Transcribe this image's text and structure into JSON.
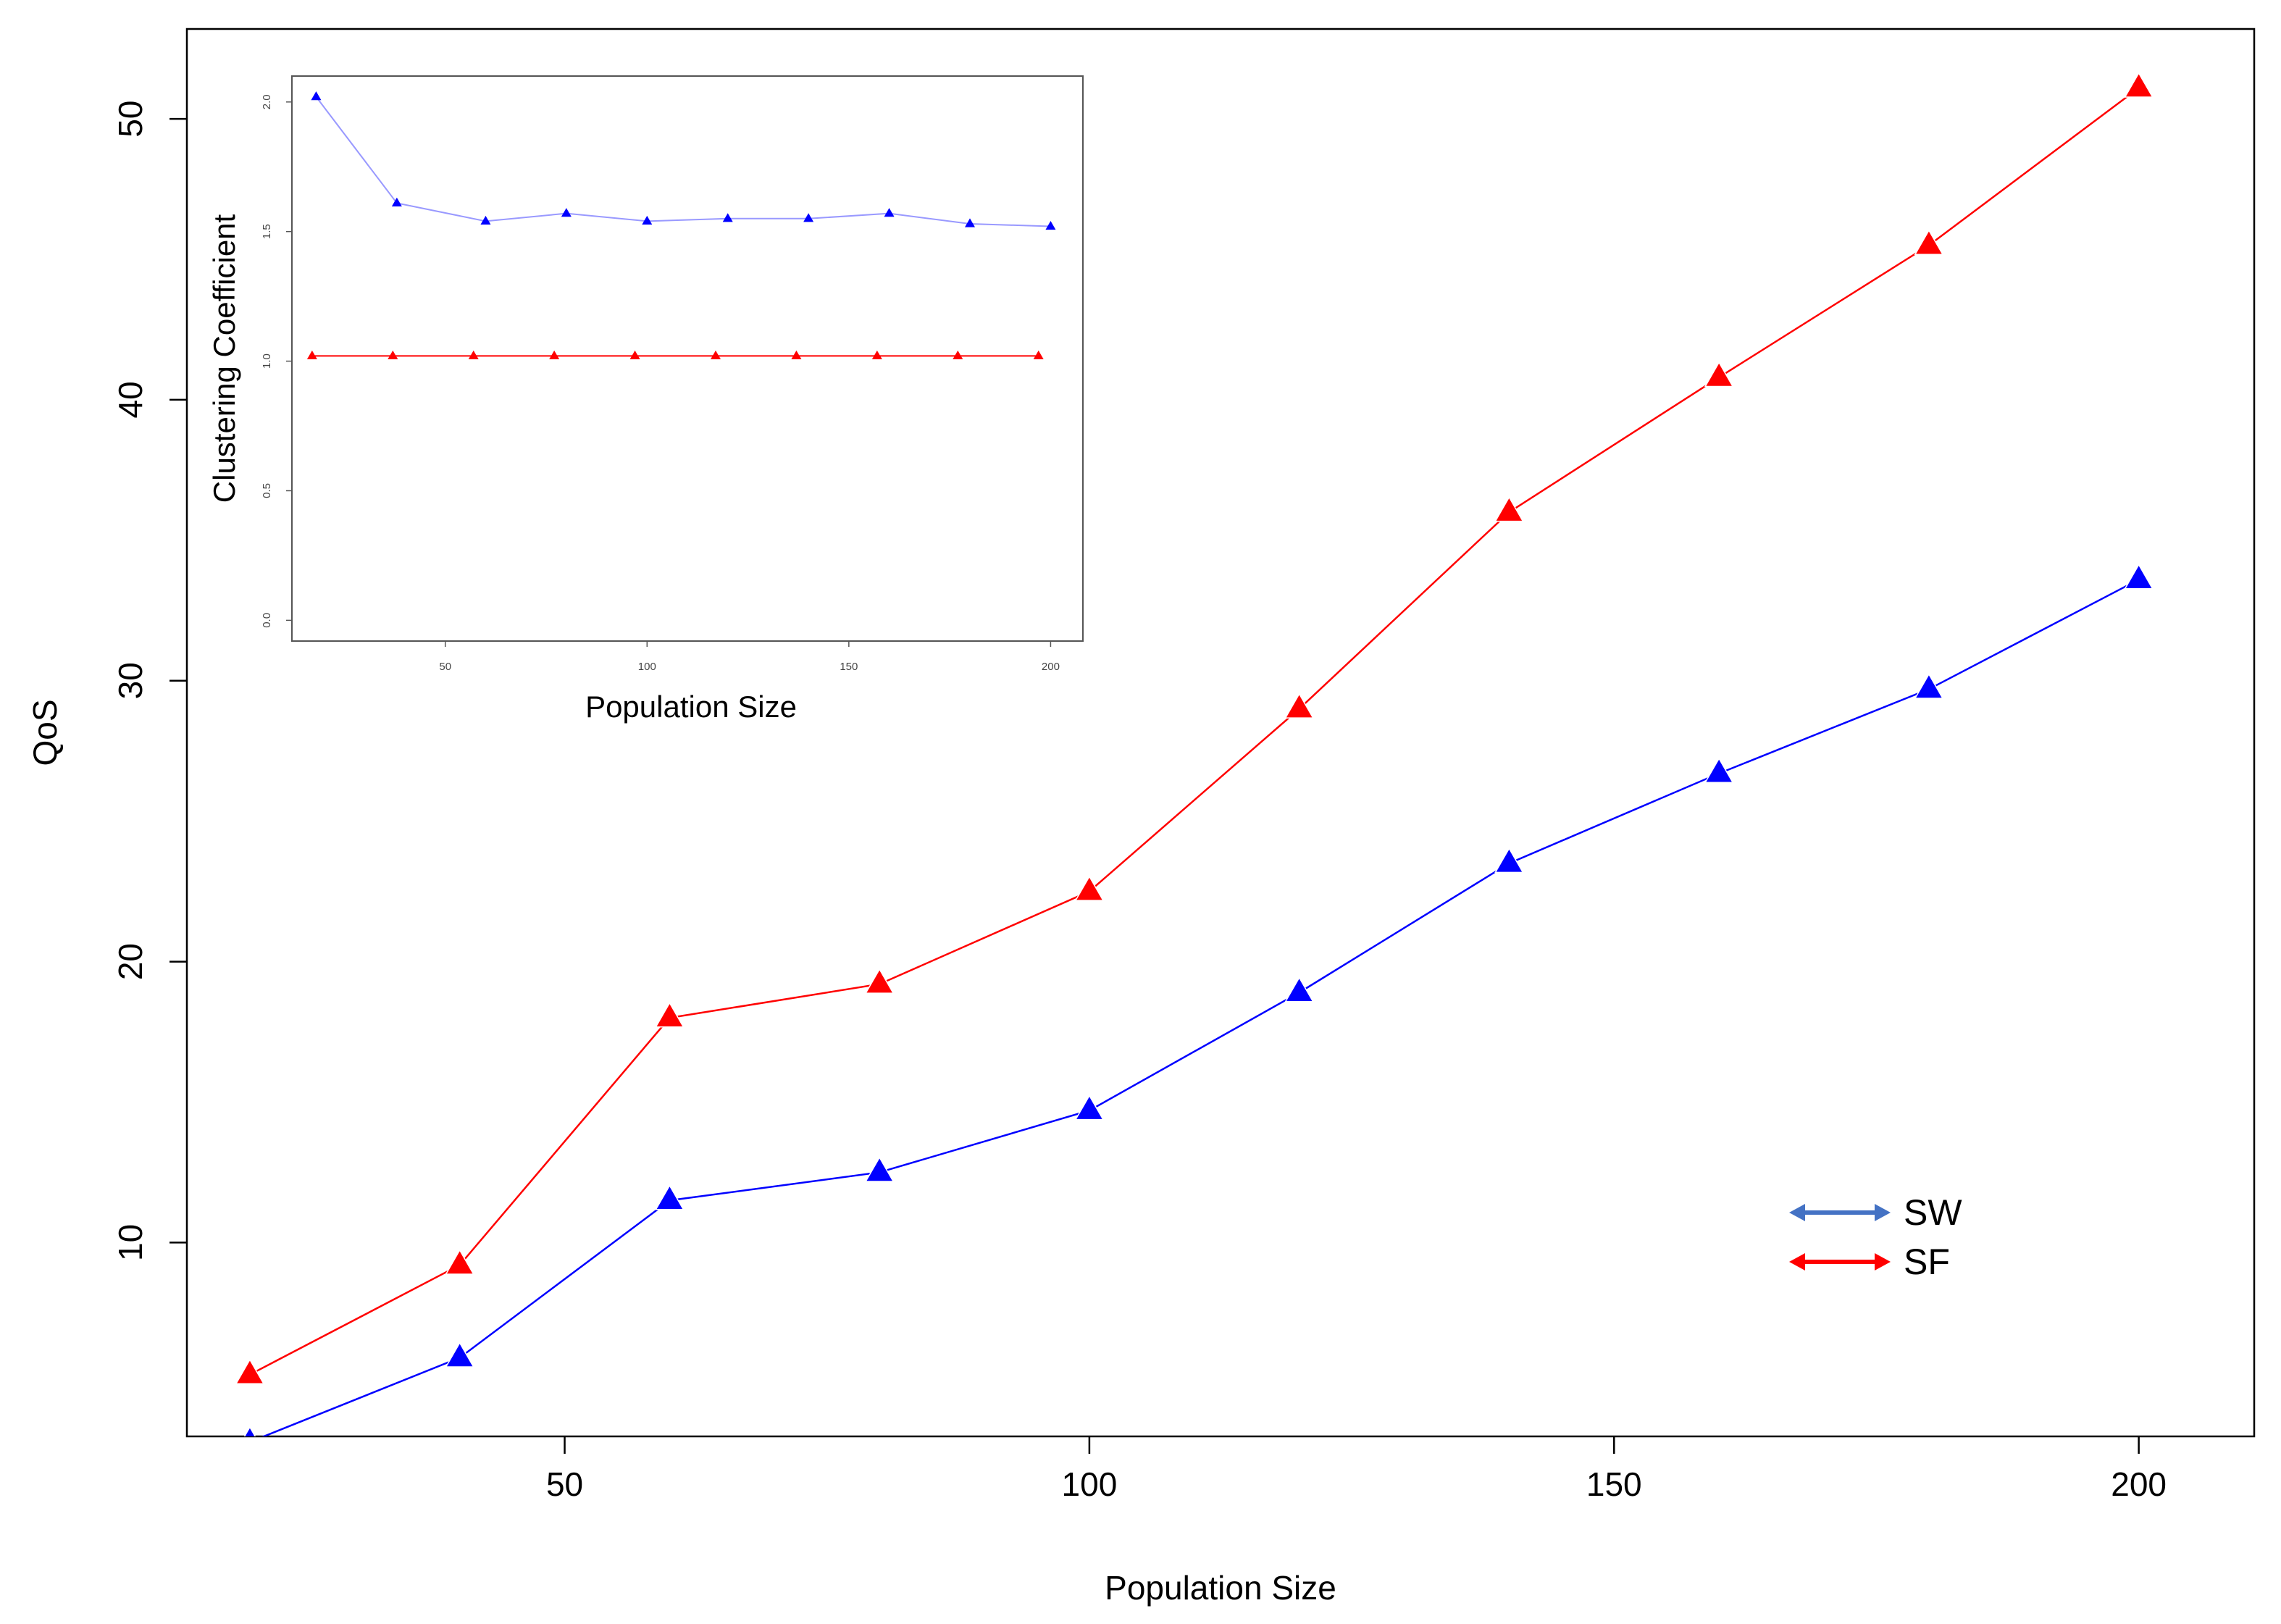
{
  "chart_data": [
    {
      "type": "line",
      "xlabel": "Population Size",
      "ylabel": "QoS",
      "xlim": [
        14,
        211
      ],
      "ylim": [
        3.1,
        53.2
      ],
      "xticks": [
        50,
        100,
        150,
        200
      ],
      "yticks": [
        10,
        20,
        30,
        40,
        50
      ],
      "x": [
        20,
        40,
        60,
        80,
        100,
        120,
        140,
        160,
        180,
        200
      ],
      "series": [
        {
          "name": "SW",
          "color": "#0000ff",
          "legend_color": "#4472c4",
          "values": [
            2.9,
            5.9,
            11.5,
            12.5,
            14.7,
            18.9,
            23.5,
            26.7,
            29.7,
            33.6
          ]
        },
        {
          "name": "SF",
          "color": "#ff0000",
          "legend_color": "#ff0000",
          "values": [
            5.3,
            9.2,
            18.0,
            19.2,
            22.5,
            29.0,
            36.0,
            40.8,
            45.5,
            51.1
          ]
        }
      ],
      "grid": false,
      "legend_position": "bottom-right"
    },
    {
      "type": "line",
      "inset": true,
      "xlabel": "Population Size",
      "ylabel": "Clustering Coefficient",
      "xlim": [
        12,
        208
      ],
      "ylim": [
        -0.08,
        2.1
      ],
      "xticks": [
        50,
        100,
        150,
        200
      ],
      "yticks": [
        0.0,
        0.5,
        1.0,
        1.5,
        2.0
      ],
      "ytick_labels": [
        "0.0",
        "0.5",
        "1.0",
        "1.5",
        "2.0"
      ],
      "series": [
        {
          "color": "#0000ff",
          "line_color": "#9999ff",
          "x": [
            18,
            38,
            60,
            80,
            100,
            120,
            140,
            160,
            180,
            200
          ],
          "values": [
            2.02,
            1.61,
            1.54,
            1.57,
            1.54,
            1.55,
            1.55,
            1.57,
            1.53,
            1.52
          ]
        },
        {
          "color": "#ff0000",
          "line_color": "#ff0000",
          "x": [
            17,
            37,
            57,
            77,
            97,
            117,
            137,
            157,
            177,
            197
          ],
          "values": [
            1.02,
            1.02,
            1.02,
            1.02,
            1.02,
            1.02,
            1.02,
            1.02,
            1.02,
            1.02
          ]
        }
      ]
    }
  ]
}
